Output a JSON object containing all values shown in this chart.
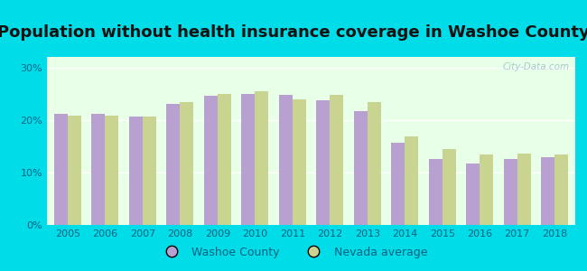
{
  "title": "Population without health insurance coverage in Washoe County",
  "years": [
    2005,
    2006,
    2007,
    2008,
    2009,
    2010,
    2011,
    2012,
    2013,
    2014,
    2015,
    2016,
    2017,
    2018
  ],
  "washoe": [
    21.1,
    21.1,
    20.7,
    23.1,
    24.6,
    25.0,
    24.7,
    23.8,
    21.7,
    15.6,
    12.6,
    11.7,
    12.6,
    12.9
  ],
  "nevada": [
    20.9,
    20.9,
    20.6,
    23.4,
    24.9,
    25.4,
    23.9,
    24.8,
    23.4,
    16.8,
    14.5,
    13.5,
    13.6,
    13.4
  ],
  "washoe_color": "#b8a0d0",
  "nevada_color": "#c8d490",
  "bg_outer": "#00dde8",
  "bg_plot_top": "#e8ffe8",
  "bg_plot_bottom": "#fffff8",
  "yticks": [
    0,
    10,
    20,
    30
  ],
  "ytick_labels": [
    "0%",
    "10%",
    "20%",
    "30%"
  ],
  "legend_washoe": "Washoe County",
  "legend_nevada": "Nevada average",
  "title_fontsize": 13,
  "title_color": "#111111",
  "watermark": "City-Data.com",
  "tick_color": "#006080",
  "axis_label_fontsize": 8
}
